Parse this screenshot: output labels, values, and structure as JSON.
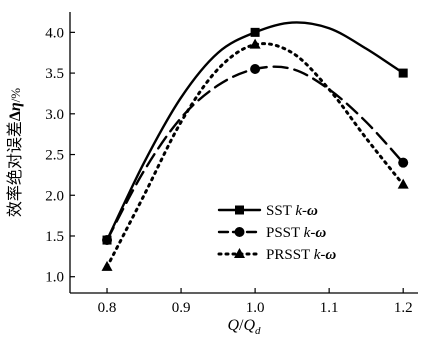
{
  "chart_data": {
    "type": "line",
    "xlabel": "Q/Q_d",
    "xlabel_parts": {
      "q": "Q",
      "slash": "/",
      "qd": "Q",
      "sub": "d"
    },
    "ylabel": "效率绝对误差 Δη /%",
    "ylabel_parts": {
      "cn": "效率绝对误差",
      "delta": "Δ",
      "eta": "η",
      "unit": "/%"
    },
    "xlim": [
      0.75,
      1.22
    ],
    "ylim": [
      0.8,
      4.25
    ],
    "x_ticks": [
      "0.8",
      "0.9",
      "1.0",
      "1.1",
      "1.2"
    ],
    "x_tick_values": [
      0.8,
      0.9,
      1.0,
      1.1,
      1.2
    ],
    "y_ticks": [
      "1.0",
      "1.5",
      "2.0",
      "2.5",
      "3.0",
      "3.5",
      "4.0"
    ],
    "y_tick_values": [
      1.0,
      1.5,
      2.0,
      2.5,
      3.0,
      3.5,
      4.0
    ],
    "legend_position": "lower-right",
    "series": [
      {
        "name": "SST k-ω",
        "name_parts": {
          "prefix": "SST ",
          "k": "k",
          "dash": "-",
          "omega": "ω"
        },
        "marker": "square",
        "dash": "solid",
        "x": [
          0.8,
          1.0,
          1.2
        ],
        "y": [
          1.45,
          4.0,
          3.5
        ],
        "curve_x": [
          0.8,
          0.85,
          0.9,
          0.95,
          1.0,
          1.05,
          1.1,
          1.15,
          1.2
        ],
        "curve_y": [
          1.45,
          2.4,
          3.2,
          3.75,
          4.0,
          4.12,
          4.05,
          3.8,
          3.5
        ]
      },
      {
        "name": "PSST k-ω",
        "name_parts": {
          "prefix": "PSST ",
          "k": "k",
          "dash": "-",
          "omega": "ω"
        },
        "marker": "circle",
        "dash": "dash",
        "x": [
          0.8,
          1.0,
          1.2
        ],
        "y": [
          1.45,
          3.55,
          2.4
        ],
        "curve_x": [
          0.8,
          0.85,
          0.9,
          0.95,
          1.0,
          1.05,
          1.1,
          1.15,
          1.2
        ],
        "curve_y": [
          1.45,
          2.3,
          2.95,
          3.35,
          3.55,
          3.55,
          3.3,
          2.9,
          2.4
        ]
      },
      {
        "name": "PRSST k-ω",
        "name_parts": {
          "prefix": "PRSST ",
          "k": "k",
          "dash": "-",
          "omega": "ω"
        },
        "marker": "triangle",
        "dash": "dot",
        "x": [
          0.8,
          1.0,
          1.2
        ],
        "y": [
          1.12,
          3.85,
          2.13
        ],
        "curve_x": [
          0.8,
          0.85,
          0.9,
          0.95,
          1.0,
          1.05,
          1.1,
          1.15,
          1.2
        ],
        "curve_y": [
          1.12,
          2.0,
          2.9,
          3.55,
          3.85,
          3.75,
          3.3,
          2.7,
          2.13
        ]
      }
    ]
  },
  "colors": {
    "ink": "#000000",
    "background": "#ffffff"
  }
}
